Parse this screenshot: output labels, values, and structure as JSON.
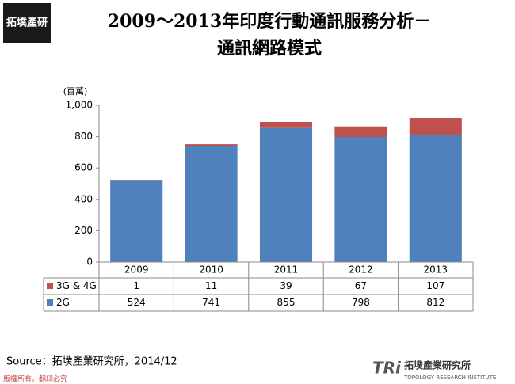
{
  "page": {
    "logo_top": "拓墣產研",
    "source": "Source：拓墣產業研究所，2014/12",
    "copyright": "版權所有。翻印必究",
    "brand_short": "TRi",
    "brand_name": "拓墣產業研究所",
    "brand_en": "TOPOLOGY RESEARCH INSTITUTE"
  },
  "chart_data": {
    "type": "bar",
    "stacked": true,
    "title": "2009～2013年印度行動通訊服務分析－",
    "subtitle": "通訊網路模式",
    "y_unit": "(百萬)",
    "categories": [
      "2009",
      "2010",
      "2011",
      "2012",
      "2013"
    ],
    "series": [
      {
        "name": "2G",
        "color": "#4f81bd",
        "values": [
          524,
          741,
          855,
          798,
          812
        ]
      },
      {
        "name": "3G & 4G",
        "color": "#c0504d",
        "values": [
          1,
          11,
          39,
          67,
          107
        ]
      }
    ],
    "ylim": [
      0,
      1000
    ],
    "yticks": [
      0,
      200,
      400,
      600,
      800,
      {
        "value": 1000,
        "label": "1,000"
      }
    ],
    "grid": false,
    "data_table": true
  }
}
